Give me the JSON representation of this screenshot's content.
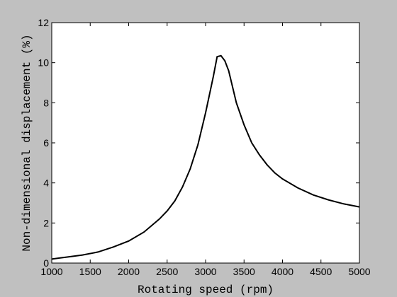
{
  "chart_data": {
    "type": "line",
    "x_label": "Rotating speed (rpm)",
    "y_label": "Non-dimensional displacement (%)",
    "x": [
      1000,
      1100,
      1200,
      1400,
      1600,
      1800,
      2000,
      2200,
      2400,
      2500,
      2600,
      2700,
      2800,
      2900,
      3000,
      3050,
      3100,
      3150,
      3200,
      3250,
      3300,
      3400,
      3500,
      3600,
      3700,
      3800,
      3900,
      4000,
      4200,
      4400,
      4600,
      4800,
      5000
    ],
    "series": [
      {
        "color": "#000000",
        "values": [
          0.2,
          0.25,
          0.3,
          0.4,
          0.55,
          0.8,
          1.1,
          1.55,
          2.2,
          2.6,
          3.1,
          3.8,
          4.7,
          5.9,
          7.5,
          8.4,
          9.3,
          10.3,
          10.35,
          10.1,
          9.6,
          8.0,
          6.9,
          6.0,
          5.4,
          4.9,
          4.5,
          4.2,
          3.75,
          3.4,
          3.15,
          2.95,
          2.8
        ]
      }
    ],
    "xlim": [
      1000,
      5000
    ],
    "xticks": [
      1000,
      1500,
      2000,
      2500,
      3000,
      3500,
      4000,
      4500,
      5000
    ],
    "ylim": [
      0,
      12
    ],
    "yticks": [
      0,
      2,
      4,
      6,
      8,
      10,
      12
    ],
    "grid": false
  }
}
